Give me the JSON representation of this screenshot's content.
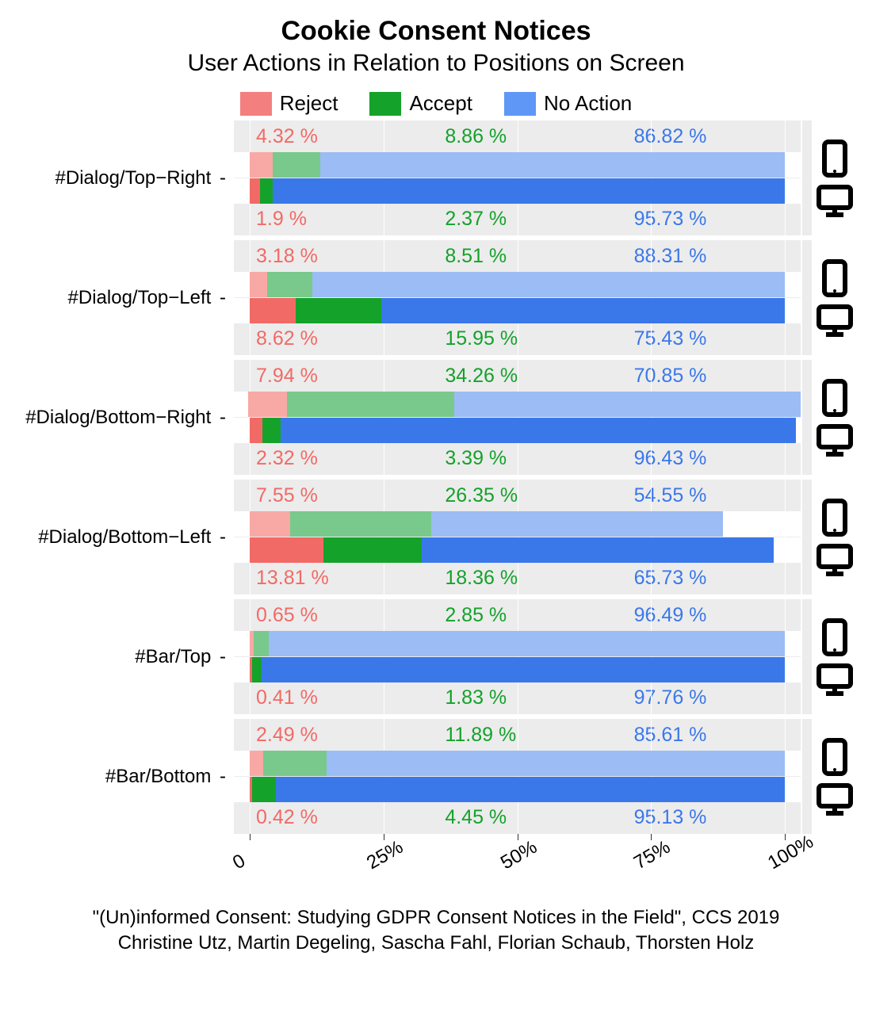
{
  "title": "Cookie Consent Notices",
  "subtitle": "User Actions in Relation to Positions on Screen",
  "legend": [
    {
      "label": "Reject",
      "color": "#f47f7f"
    },
    {
      "label": "Accept",
      "color": "#14a22a"
    },
    {
      "label": "No Action",
      "color": "#5e97f6"
    }
  ],
  "colors": {
    "reject_mobile": "#f8a9a5",
    "accept_mobile": "#78c98b",
    "noaction_mobile": "#9bbcf5",
    "reject_desktop": "#f26a66",
    "accept_desktop": "#14a22a",
    "noaction_desktop": "#3a78ea",
    "facet_bg": "#ececec",
    "grid": "#ffffff",
    "text_reject": "#f26a66",
    "text_accept": "#14a22a",
    "text_noaction": "#3a78ea"
  },
  "x_ticks": [
    {
      "pos": 0,
      "label": "0"
    },
    {
      "pos": 25,
      "label": "25%"
    },
    {
      "pos": 50,
      "label": "50%"
    },
    {
      "pos": 75,
      "label": "75%"
    },
    {
      "pos": 100,
      "label": "100%"
    }
  ],
  "xlim": [
    -3,
    103
  ],
  "facets": [
    {
      "label": "#Dialog/Top−Right",
      "mobile": {
        "reject": 4.32,
        "accept": 8.86,
        "noaction": 86.82
      },
      "desktop": {
        "reject": 1.9,
        "accept": 2.37,
        "noaction": 95.73
      },
      "pct_top": {
        "reject": "4.32 %",
        "accept": "8.86 %",
        "noaction": "86.82 %"
      },
      "pct_bottom": {
        "reject": "1.9 %",
        "accept": "2.37 %",
        "noaction": "95.73 %"
      }
    },
    {
      "label": "#Dialog/Top−Left",
      "mobile": {
        "reject": 3.18,
        "accept": 8.51,
        "noaction": 88.31
      },
      "desktop": {
        "reject": 8.62,
        "accept": 15.95,
        "noaction": 75.43
      },
      "pct_top": {
        "reject": "3.18 %",
        "accept": "8.51 %",
        "noaction": "88.31 %"
      },
      "pct_bottom": {
        "reject": "8.62 %",
        "accept": "15.95 %",
        "noaction": "75.43 %"
      }
    },
    {
      "label": "#Dialog/Bottom−Right",
      "mobile": {
        "reject": 7.94,
        "accept": 34.26,
        "noaction": 70.85
      },
      "desktop": {
        "reject": 2.32,
        "accept": 3.39,
        "noaction": 96.43
      },
      "pct_top": {
        "reject": "7.94 %",
        "accept": "34.26 %",
        "noaction": "70.85 %"
      },
      "pct_bottom": {
        "reject": "2.32 %",
        "accept": "3.39 %",
        "noaction": "96.43 %"
      }
    },
    {
      "label": "#Dialog/Bottom−Left",
      "mobile": {
        "reject": 7.55,
        "accept": 26.35,
        "noaction": 54.55
      },
      "desktop": {
        "reject": 13.81,
        "accept": 18.36,
        "noaction": 65.73
      },
      "pct_top": {
        "reject": "7.55 %",
        "accept": "26.35 %",
        "noaction": "54.55 %"
      },
      "pct_bottom": {
        "reject": "13.81 %",
        "accept": "18.36 %",
        "noaction": "65.73 %"
      }
    },
    {
      "label": "#Bar/Top",
      "mobile": {
        "reject": 0.65,
        "accept": 2.85,
        "noaction": 96.49
      },
      "desktop": {
        "reject": 0.41,
        "accept": 1.83,
        "noaction": 97.76
      },
      "pct_top": {
        "reject": "0.65 %",
        "accept": "2.85 %",
        "noaction": "96.49 %"
      },
      "pct_bottom": {
        "reject": "0.41 %",
        "accept": "1.83 %",
        "noaction": "97.76 %"
      }
    },
    {
      "label": "#Bar/Bottom",
      "mobile": {
        "reject": 2.49,
        "accept": 11.89,
        "noaction": 85.61
      },
      "desktop": {
        "reject": 0.42,
        "accept": 4.45,
        "noaction": 95.13
      },
      "pct_top": {
        "reject": "2.49 %",
        "accept": "11.89 %",
        "noaction": "85.61 %"
      },
      "pct_bottom": {
        "reject": "0.42 %",
        "accept": "4.45 %",
        "noaction": "95.13 %"
      }
    }
  ],
  "caption_line1": "\"(Un)informed Consent: Studying GDPR Consent Notices in the Field\", CCS 2019",
  "caption_line2": "Christine Utz, Martin Degeling, Sascha Fahl, Florian Schaub, Thorsten Holz",
  "typography": {
    "title_fontsize": 34,
    "subtitle_fontsize": 30,
    "legend_fontsize": 26,
    "pct_fontsize": 25,
    "label_fontsize": 24,
    "caption_fontsize": 24
  }
}
